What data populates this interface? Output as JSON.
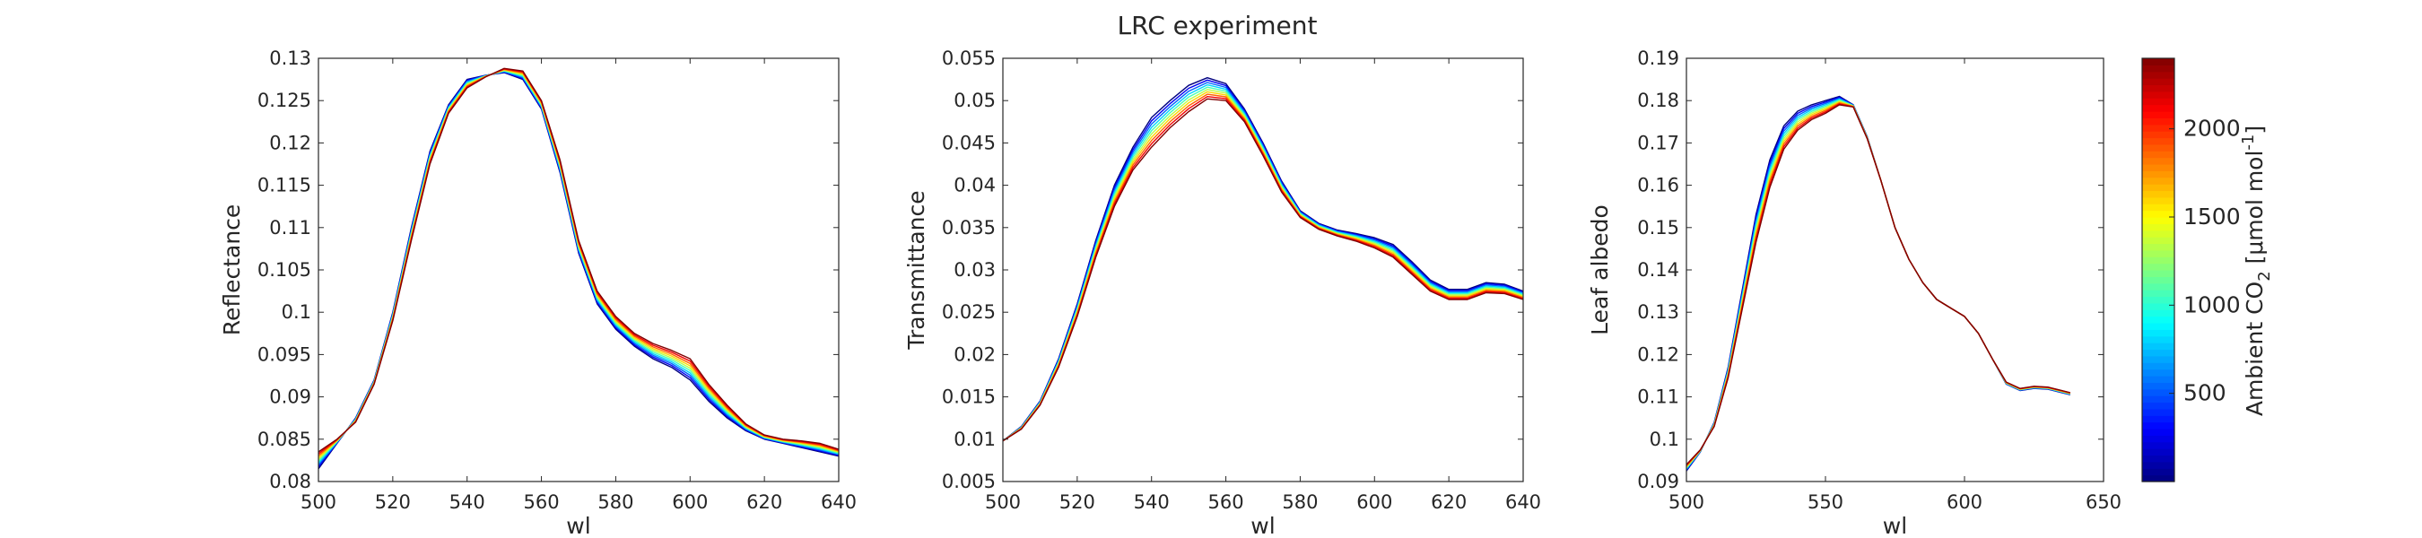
{
  "figure": {
    "title": "LRC experiment"
  },
  "colorbar": {
    "label_main": "Ambient CO",
    "label_sub": "2",
    "label_unit": " [μmol mol",
    "label_sup": "-1",
    "label_close": "]",
    "ticks": [
      500,
      1000,
      1500,
      2000
    ],
    "range": [
      0,
      2400
    ],
    "colormap": "jet",
    "n_levels": 10
  },
  "chart_data": [
    {
      "type": "line",
      "id": "reflectance",
      "title": "",
      "xlabel": "wl",
      "ylabel": "Reflectance",
      "xlim": [
        500,
        640
      ],
      "ylim": [
        0.08,
        0.13
      ],
      "xticks": [
        500,
        520,
        540,
        560,
        580,
        600,
        620,
        640
      ],
      "yticks": [
        0.08,
        0.085,
        0.09,
        0.095,
        0.1,
        0.105,
        0.11,
        0.115,
        0.12,
        0.125,
        0.13
      ],
      "ytick_labels": [
        "0.08",
        "0.085",
        "0.09",
        "0.095",
        "0.1",
        "0.105",
        "0.11",
        "0.115",
        "0.12",
        "0.125",
        "0.13"
      ],
      "x": [
        500,
        505,
        510,
        515,
        520,
        525,
        530,
        535,
        540,
        545,
        550,
        555,
        560,
        565,
        570,
        575,
        580,
        585,
        590,
        595,
        600,
        605,
        610,
        615,
        620,
        625,
        630,
        635,
        640
      ],
      "series_low": [
        0.0815,
        0.0845,
        0.0875,
        0.092,
        0.1,
        0.11,
        0.119,
        0.1245,
        0.1275,
        0.128,
        0.1283,
        0.1275,
        0.124,
        0.1165,
        0.107,
        0.101,
        0.098,
        0.096,
        0.0945,
        0.0935,
        0.092,
        0.0895,
        0.0875,
        0.086,
        0.085,
        0.0845,
        0.084,
        0.0835,
        0.083
      ],
      "series_high": [
        0.0835,
        0.085,
        0.087,
        0.0915,
        0.099,
        0.1085,
        0.1175,
        0.1235,
        0.1265,
        0.1278,
        0.1288,
        0.1285,
        0.125,
        0.118,
        0.1085,
        0.1025,
        0.0995,
        0.0975,
        0.0963,
        0.0955,
        0.0945,
        0.0915,
        0.089,
        0.0868,
        0.0855,
        0.085,
        0.0848,
        0.0845,
        0.0838
      ]
    },
    {
      "type": "line",
      "id": "transmittance",
      "title": "",
      "xlabel": "wl",
      "ylabel": "Transmittance",
      "xlim": [
        500,
        640
      ],
      "ylim": [
        0.005,
        0.055
      ],
      "xticks": [
        500,
        520,
        540,
        560,
        580,
        600,
        620,
        640
      ],
      "yticks": [
        0.005,
        0.01,
        0.015,
        0.02,
        0.025,
        0.03,
        0.035,
        0.04,
        0.045,
        0.05,
        0.055
      ],
      "ytick_labels": [
        "0.005",
        "0.01",
        "0.015",
        "0.02",
        "0.025",
        "0.03",
        "0.035",
        "0.04",
        "0.045",
        "0.05",
        "0.055"
      ],
      "x": [
        500,
        505,
        510,
        515,
        520,
        525,
        530,
        535,
        540,
        545,
        550,
        555,
        560,
        565,
        570,
        575,
        580,
        585,
        590,
        595,
        600,
        605,
        610,
        615,
        620,
        625,
        630,
        635,
        640
      ],
      "series_low": [
        0.0098,
        0.0115,
        0.0145,
        0.0195,
        0.026,
        0.0335,
        0.04,
        0.0445,
        0.048,
        0.05,
        0.0518,
        0.0527,
        0.052,
        0.049,
        0.045,
        0.0405,
        0.037,
        0.0355,
        0.0347,
        0.0343,
        0.0338,
        0.033,
        0.031,
        0.0288,
        0.0277,
        0.0277,
        0.0285,
        0.0283,
        0.0275
      ],
      "series_high": [
        0.0098,
        0.0112,
        0.014,
        0.0185,
        0.0245,
        0.0315,
        0.0375,
        0.0418,
        0.0445,
        0.0468,
        0.0487,
        0.0502,
        0.05,
        0.0475,
        0.0435,
        0.0392,
        0.0362,
        0.0348,
        0.034,
        0.0334,
        0.0326,
        0.0315,
        0.0295,
        0.0275,
        0.0265,
        0.0265,
        0.0273,
        0.0272,
        0.0265
      ]
    },
    {
      "type": "line",
      "id": "leaf-albedo",
      "title": "",
      "xlabel": "wl",
      "ylabel": "Leaf albedo",
      "xlim": [
        500,
        650
      ],
      "ylim": [
        0.09,
        0.19
      ],
      "xticks": [
        500,
        550,
        600,
        650
      ],
      "yticks": [
        0.09,
        0.1,
        0.11,
        0.12,
        0.13,
        0.14,
        0.15,
        0.16,
        0.17,
        0.18,
        0.19
      ],
      "ytick_labels": [
        "0.09",
        "0.1",
        "0.11",
        "0.12",
        "0.13",
        "0.14",
        "0.15",
        "0.16",
        "0.17",
        "0.18",
        "0.19"
      ],
      "x": [
        500,
        505,
        510,
        515,
        520,
        525,
        530,
        535,
        540,
        545,
        550,
        555,
        560,
        565,
        570,
        575,
        580,
        585,
        590,
        595,
        600,
        605,
        610,
        615,
        620,
        625,
        630,
        635,
        638
      ],
      "series_low": [
        0.0925,
        0.097,
        0.104,
        0.117,
        0.135,
        0.153,
        0.166,
        0.174,
        0.1775,
        0.179,
        0.18,
        0.181,
        0.179,
        0.1715,
        0.161,
        0.15,
        0.1425,
        0.137,
        0.133,
        0.131,
        0.129,
        0.125,
        0.119,
        0.113,
        0.1115,
        0.112,
        0.1118,
        0.111,
        0.1105
      ],
      "series_high": [
        0.094,
        0.0975,
        0.103,
        0.1145,
        0.1305,
        0.1465,
        0.1595,
        0.1685,
        0.173,
        0.1755,
        0.177,
        0.179,
        0.1785,
        0.171,
        0.161,
        0.15,
        0.1425,
        0.137,
        0.133,
        0.131,
        0.129,
        0.125,
        0.119,
        0.1135,
        0.112,
        0.1125,
        0.1123,
        0.1115,
        0.111
      ]
    }
  ]
}
